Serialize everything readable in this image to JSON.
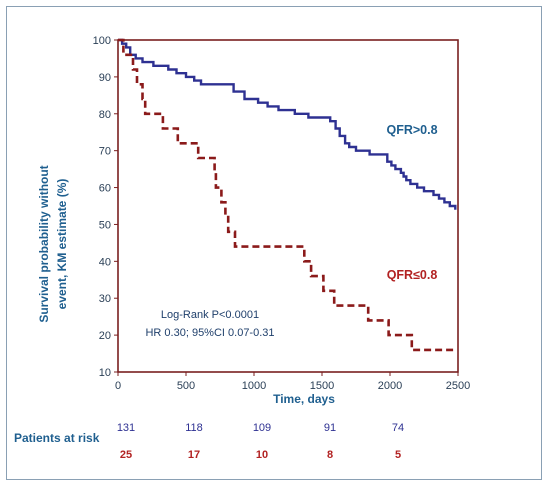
{
  "chart_data": {
    "type": "line",
    "ylabel_line1": "Survival probability without",
    "ylabel_line2": "event, KM estimate (%)",
    "xlabel": "Time, days",
    "xlim": [
      0,
      2500
    ],
    "ylim": [
      10,
      100
    ],
    "x_ticks": [
      0,
      500,
      1000,
      1500,
      2000,
      2500
    ],
    "y_ticks": [
      10,
      20,
      30,
      40,
      50,
      60,
      70,
      80,
      90,
      100
    ],
    "annotation_line1": "Log-Rank P<0.0001",
    "annotation_line2": "HR 0.30; 95%CI 0.07-0.31",
    "series": [
      {
        "name": "QFR>0.8",
        "color": "#2e3192",
        "style": "solid",
        "points": [
          [
            0,
            100
          ],
          [
            30,
            99
          ],
          [
            60,
            98
          ],
          [
            90,
            96
          ],
          [
            130,
            95
          ],
          [
            180,
            94
          ],
          [
            260,
            93
          ],
          [
            370,
            92
          ],
          [
            430,
            91
          ],
          [
            500,
            90
          ],
          [
            560,
            89
          ],
          [
            610,
            88
          ],
          [
            760,
            88
          ],
          [
            850,
            86
          ],
          [
            930,
            84
          ],
          [
            1030,
            83
          ],
          [
            1100,
            82
          ],
          [
            1180,
            81
          ],
          [
            1300,
            80
          ],
          [
            1400,
            79
          ],
          [
            1530,
            79
          ],
          [
            1560,
            78
          ],
          [
            1600,
            76
          ],
          [
            1630,
            74
          ],
          [
            1670,
            72
          ],
          [
            1700,
            71
          ],
          [
            1750,
            70
          ],
          [
            1850,
            69
          ],
          [
            1950,
            69
          ],
          [
            1980,
            67
          ],
          [
            2010,
            66
          ],
          [
            2040,
            65
          ],
          [
            2080,
            64
          ],
          [
            2100,
            63
          ],
          [
            2120,
            62
          ],
          [
            2150,
            61
          ],
          [
            2200,
            60
          ],
          [
            2250,
            59
          ],
          [
            2320,
            58
          ],
          [
            2360,
            57
          ],
          [
            2400,
            56
          ],
          [
            2440,
            55
          ],
          [
            2480,
            54
          ]
        ]
      },
      {
        "name": "QFR≤0.8",
        "color": "#8b1a1a",
        "style": "dashed",
        "points": [
          [
            0,
            100
          ],
          [
            40,
            96
          ],
          [
            110,
            92
          ],
          [
            140,
            88
          ],
          [
            180,
            84
          ],
          [
            200,
            80
          ],
          [
            320,
            80
          ],
          [
            330,
            76
          ],
          [
            430,
            76
          ],
          [
            440,
            72
          ],
          [
            580,
            72
          ],
          [
            590,
            68
          ],
          [
            700,
            68
          ],
          [
            710,
            64
          ],
          [
            720,
            60
          ],
          [
            760,
            56
          ],
          [
            790,
            52
          ],
          [
            810,
            48
          ],
          [
            850,
            48
          ],
          [
            860,
            44
          ],
          [
            1350,
            44
          ],
          [
            1370,
            40
          ],
          [
            1420,
            36
          ],
          [
            1500,
            36
          ],
          [
            1510,
            32
          ],
          [
            1580,
            32
          ],
          [
            1590,
            28
          ],
          [
            1820,
            28
          ],
          [
            1840,
            24
          ],
          [
            1980,
            24
          ],
          [
            1990,
            20
          ],
          [
            2150,
            20
          ],
          [
            2160,
            16
          ],
          [
            2480,
            16
          ]
        ]
      }
    ],
    "risk_table": {
      "label": "Patients at risk",
      "x": [
        0,
        500,
        1000,
        1500,
        2000
      ],
      "rows": [
        {
          "values": [
            "131",
            "118",
            "109",
            "91",
            "74"
          ],
          "color": "#2e3192"
        },
        {
          "values": [
            "25",
            "17",
            "10",
            "8",
            "5"
          ],
          "color": "#b22222"
        }
      ]
    }
  }
}
